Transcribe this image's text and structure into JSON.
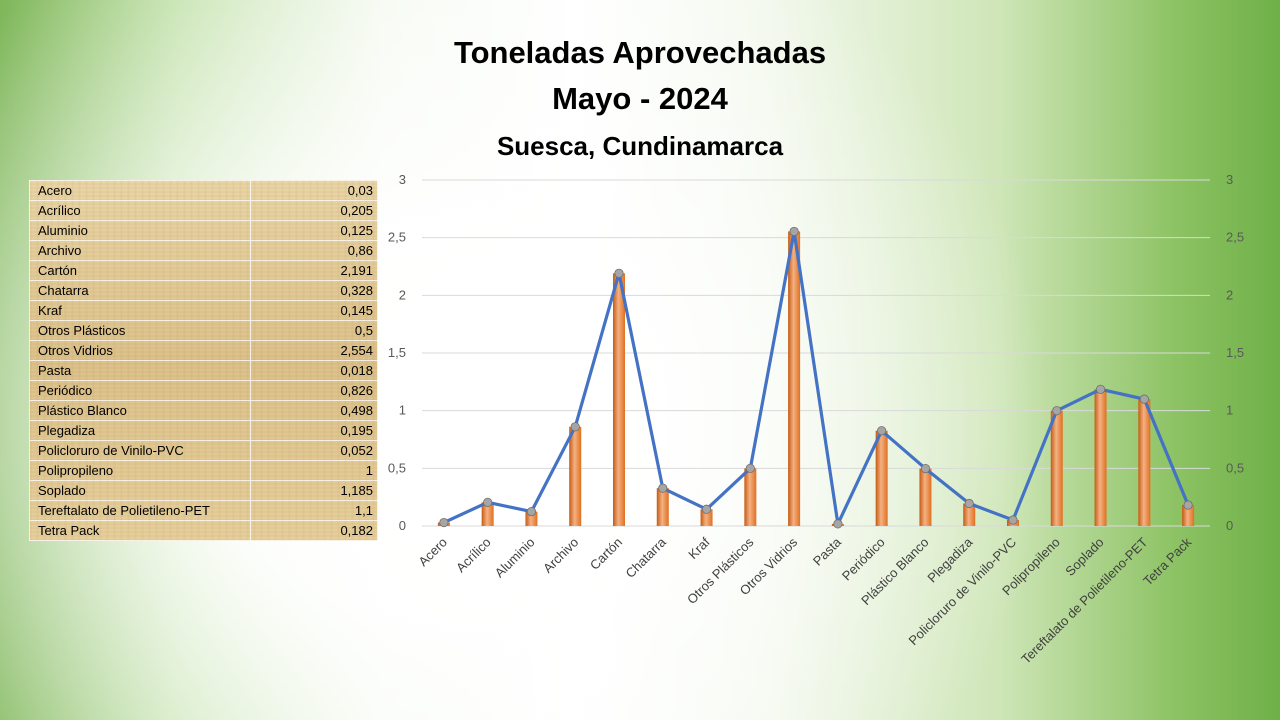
{
  "title": {
    "line1": "Toneladas Aprovechadas",
    "line2": "Mayo - 2024",
    "subtitle": "Suesca, Cundinamarca"
  },
  "table": {
    "rows": [
      {
        "name": "Acero",
        "value": "0,03"
      },
      {
        "name": "Acrílico",
        "value": "0,205"
      },
      {
        "name": "Aluminio",
        "value": "0,125"
      },
      {
        "name": "Archivo",
        "value": "0,86"
      },
      {
        "name": "Cartón",
        "value": "2,191"
      },
      {
        "name": "Chatarra",
        "value": "0,328"
      },
      {
        "name": "Kraf",
        "value": "0,145"
      },
      {
        "name": "Otros Plásticos",
        "value": "0,5"
      },
      {
        "name": "Otros Vidrios",
        "value": "2,554"
      },
      {
        "name": "Pasta",
        "value": "0,018"
      },
      {
        "name": "Periódico",
        "value": "0,826"
      },
      {
        "name": "Plástico Blanco",
        "value": "0,498"
      },
      {
        "name": "Plegadiza",
        "value": "0,195"
      },
      {
        "name": "Policloruro de Vinilo-PVC",
        "value": "0,052"
      },
      {
        "name": "Polipropileno",
        "value": "1"
      },
      {
        "name": "Soplado",
        "value": "1,185"
      },
      {
        "name": "Tereftalato de Polietileno-PET",
        "value": "1,1"
      },
      {
        "name": "Tetra Pack",
        "value": "0,182"
      }
    ]
  },
  "chart_data": {
    "type": "bar",
    "overlay": "line",
    "categories": [
      "Acero",
      "Acrílico",
      "Aluminio",
      "Archivo",
      "Cartón",
      "Chatarra",
      "Kraf",
      "Otros Plásticos",
      "Otros Vidrios",
      "Pasta",
      "Periódico",
      "Plástico Blanco",
      "Plegadiza",
      "Policloruro de Vinilo-PVC",
      "Polipropileno",
      "Soplado",
      "Tereftalato de Polietileno-PET",
      "Tetra Pack"
    ],
    "values": [
      0.03,
      0.205,
      0.125,
      0.86,
      2.191,
      0.328,
      0.145,
      0.5,
      2.554,
      0.018,
      0.826,
      0.498,
      0.195,
      0.052,
      1,
      1.185,
      1.1,
      0.182
    ],
    "ylim": [
      0,
      3
    ],
    "yticks": [
      "0",
      "0,5",
      "1",
      "1,5",
      "2",
      "2,5",
      "3"
    ],
    "secondary_axis": true,
    "grid": true,
    "colors": {
      "bar": "#ed7d31",
      "line": "#4472c4",
      "marker": "#a5a5a5"
    }
  }
}
